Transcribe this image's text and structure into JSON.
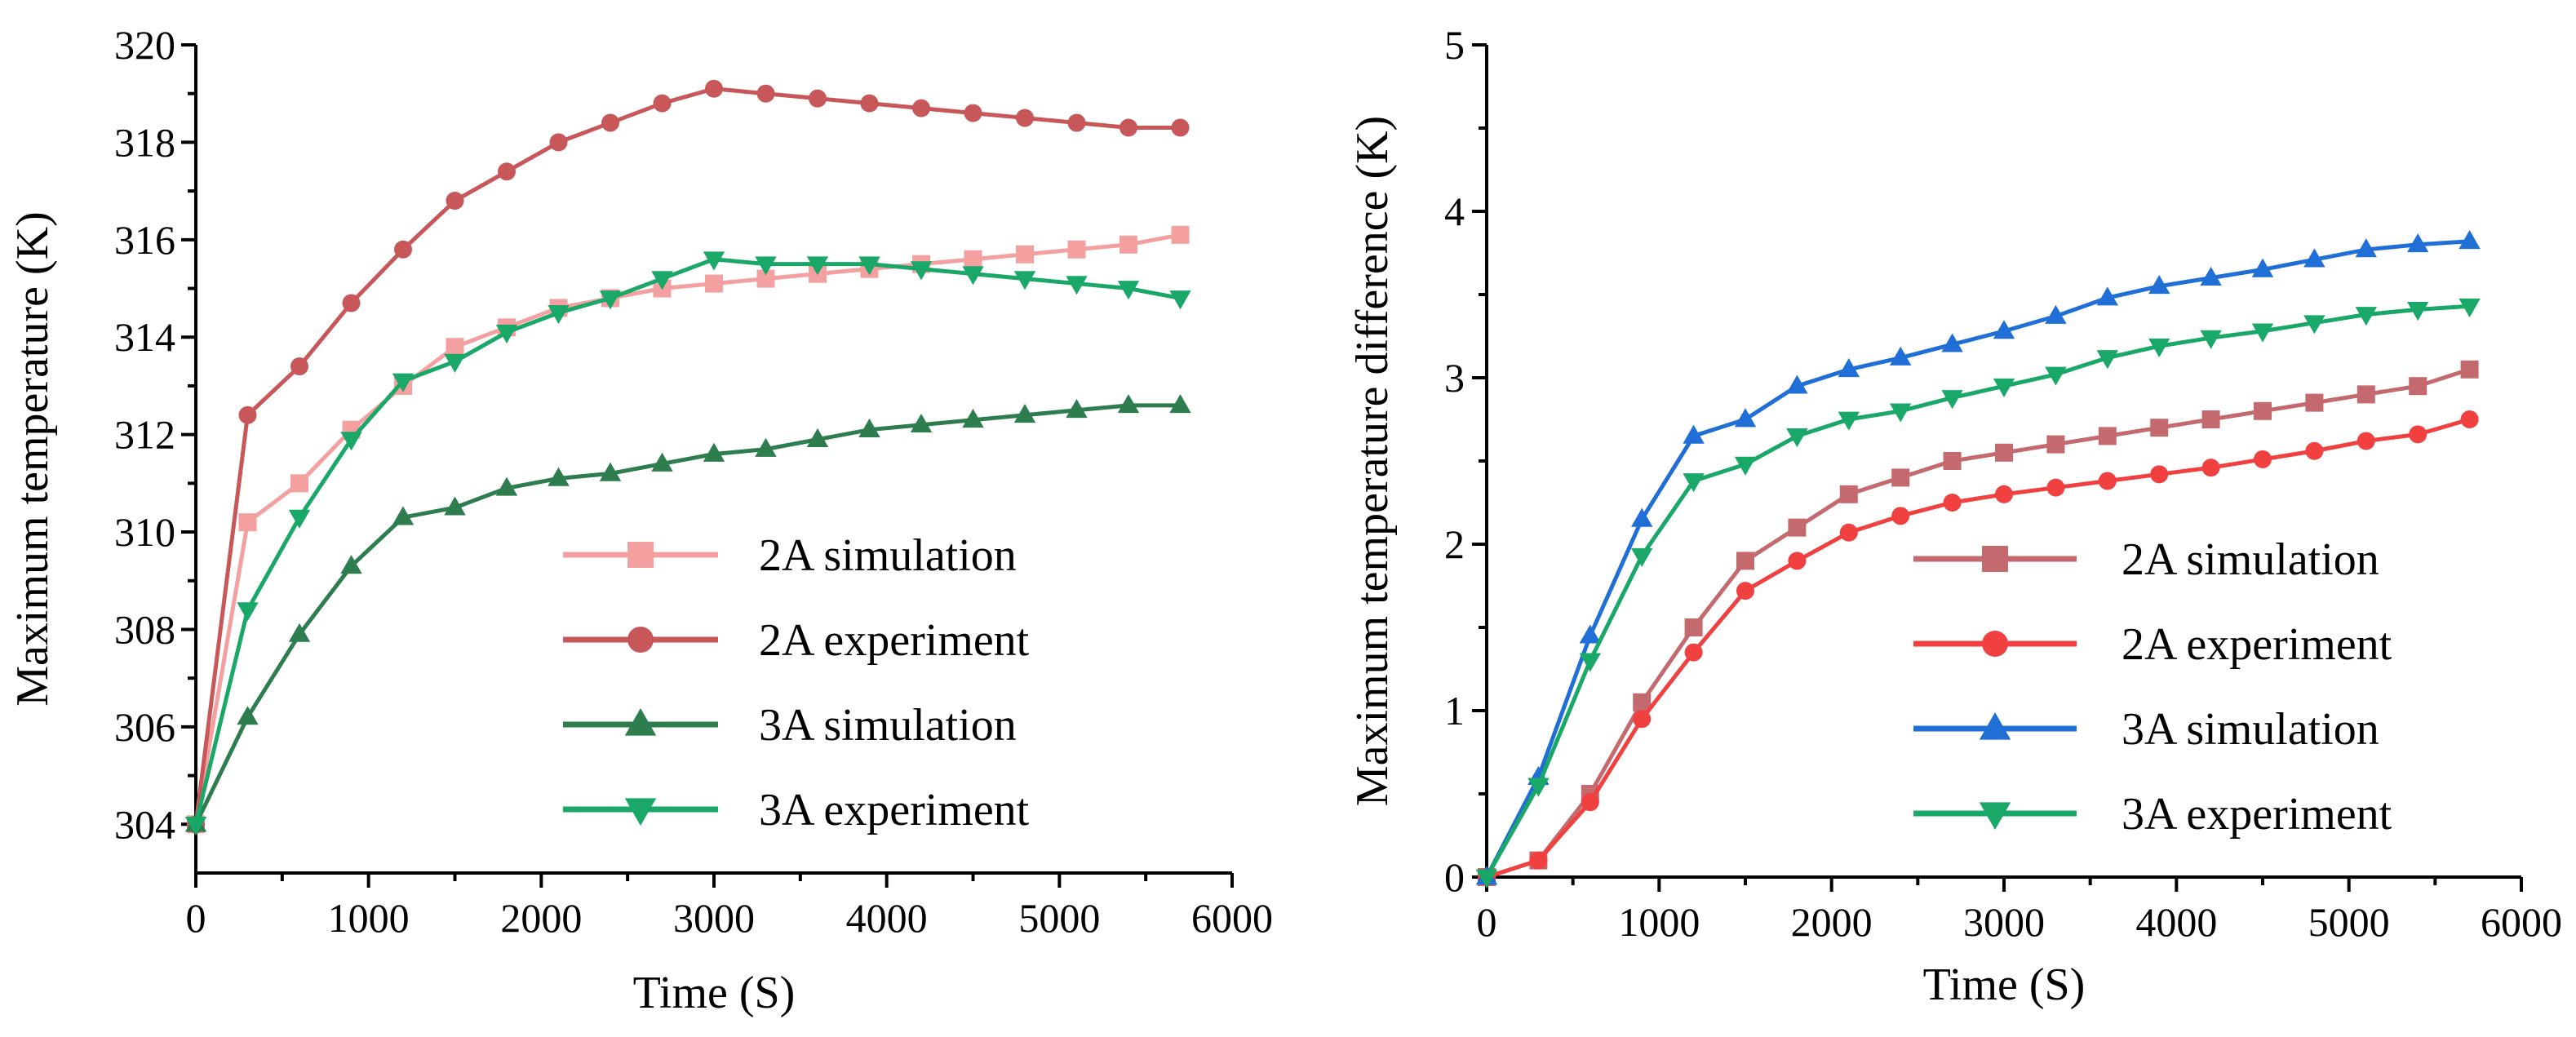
{
  "chart_data": [
    {
      "type": "line",
      "title": "",
      "xlabel": "Time (S)",
      "ylabel": "Maximum temperature (K)",
      "xlim": [
        0,
        6000
      ],
      "ylim": [
        303,
        320
      ],
      "xticks": [
        0,
        1000,
        2000,
        3000,
        4000,
        5000,
        6000
      ],
      "yticks": [
        304,
        306,
        308,
        310,
        312,
        314,
        316,
        318,
        320
      ],
      "x": [
        0,
        300,
        600,
        900,
        1200,
        1500,
        1800,
        2100,
        2400,
        2700,
        3000,
        3300,
        3600,
        3900,
        4200,
        4500,
        4800,
        5100,
        5400,
        5700
      ],
      "legend_position": "lower-right",
      "series": [
        {
          "name": "2A simulation",
          "color": "#f4a0a0",
          "marker": "square",
          "values": [
            304.0,
            310.2,
            311.0,
            312.1,
            313.0,
            313.8,
            314.2,
            314.6,
            314.8,
            315.0,
            315.1,
            315.2,
            315.3,
            315.4,
            315.5,
            315.6,
            315.7,
            315.8,
            315.9,
            316.1
          ]
        },
        {
          "name": "2A experiment",
          "color": "#c8575a",
          "marker": "circle",
          "values": [
            304.0,
            312.4,
            313.4,
            314.7,
            315.8,
            316.8,
            317.4,
            318.0,
            318.4,
            318.8,
            319.1,
            319.0,
            318.9,
            318.8,
            318.7,
            318.6,
            318.5,
            318.4,
            318.3,
            318.3
          ]
        },
        {
          "name": "3A simulation",
          "color": "#2e7d4f",
          "marker": "triangle-up",
          "values": [
            304.0,
            306.2,
            307.9,
            309.3,
            310.3,
            310.5,
            310.9,
            311.1,
            311.2,
            311.4,
            311.6,
            311.7,
            311.9,
            312.1,
            312.2,
            312.3,
            312.4,
            312.5,
            312.6,
            312.6
          ]
        },
        {
          "name": "3A experiment",
          "color": "#1aa868",
          "marker": "triangle-down",
          "values": [
            304.0,
            308.4,
            310.3,
            311.9,
            313.1,
            313.5,
            314.1,
            314.5,
            314.8,
            315.2,
            315.6,
            315.5,
            315.5,
            315.5,
            315.4,
            315.3,
            315.2,
            315.1,
            315.0,
            314.8
          ]
        }
      ]
    },
    {
      "type": "line",
      "title": "",
      "xlabel": "Time (S)",
      "ylabel": "Maximum temperature difference (K)",
      "xlim": [
        0,
        6000
      ],
      "ylim": [
        0,
        5
      ],
      "xticks": [
        0,
        1000,
        2000,
        3000,
        4000,
        5000,
        6000
      ],
      "yticks": [
        0,
        1,
        2,
        3,
        4,
        5
      ],
      "x": [
        0,
        300,
        600,
        900,
        1200,
        1500,
        1800,
        2100,
        2400,
        2700,
        3000,
        3300,
        3600,
        3900,
        4200,
        4500,
        4800,
        5100,
        5400,
        5700
      ],
      "legend_position": "lower-right",
      "series": [
        {
          "name": "2A simulation",
          "color": "#c46a6e",
          "marker": "square",
          "values": [
            0.0,
            0.1,
            0.5,
            1.05,
            1.5,
            1.9,
            2.1,
            2.3,
            2.4,
            2.5,
            2.55,
            2.6,
            2.65,
            2.7,
            2.75,
            2.8,
            2.85,
            2.9,
            2.95,
            3.05
          ]
        },
        {
          "name": "2A experiment",
          "color": "#f04040",
          "marker": "circle",
          "values": [
            0.0,
            0.1,
            0.45,
            0.95,
            1.35,
            1.72,
            1.9,
            2.07,
            2.17,
            2.25,
            2.3,
            2.34,
            2.38,
            2.42,
            2.46,
            2.51,
            2.56,
            2.62,
            2.66,
            2.75
          ]
        },
        {
          "name": "3A simulation",
          "color": "#1f6fd6",
          "marker": "triangle-up",
          "values": [
            0.0,
            0.6,
            1.45,
            2.15,
            2.65,
            2.75,
            2.95,
            3.05,
            3.12,
            3.2,
            3.28,
            3.37,
            3.48,
            3.55,
            3.6,
            3.65,
            3.71,
            3.77,
            3.8,
            3.82
          ]
        },
        {
          "name": "3A experiment",
          "color": "#1aa868",
          "marker": "triangle-down",
          "values": [
            0.0,
            0.55,
            1.3,
            1.93,
            2.38,
            2.48,
            2.65,
            2.75,
            2.8,
            2.88,
            2.95,
            3.02,
            3.12,
            3.19,
            3.24,
            3.28,
            3.33,
            3.38,
            3.41,
            3.43
          ]
        }
      ]
    }
  ]
}
